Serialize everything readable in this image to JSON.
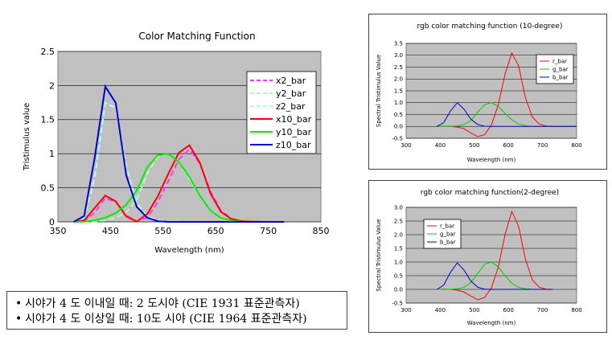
{
  "chart_data": [
    {
      "type": "line",
      "title": "Color Matching Function",
      "xlabel": "Wavelength (nm)",
      "ylabel": "Tristimulus value",
      "xlim": [
        350,
        850
      ],
      "ylim": [
        0,
        2.5
      ],
      "xticks": [
        "350",
        "450",
        "550",
        "650",
        "750",
        "850"
      ],
      "yticks": [
        "0",
        "0.5",
        "1",
        "1.5",
        "2",
        "2.5"
      ],
      "grid": true,
      "legend": "top-right",
      "background": "#c0c0c0",
      "x": [
        380,
        400,
        420,
        440,
        460,
        480,
        500,
        520,
        540,
        560,
        580,
        600,
        620,
        640,
        660,
        680,
        700,
        720,
        740,
        760,
        780
      ],
      "series": [
        {
          "name": "x2_bar",
          "color": "#ff33ff",
          "dash": "dash",
          "values": [
            0.001,
            0.014,
            0.134,
            0.348,
            0.291,
            0.096,
            0.005,
            0.063,
            0.29,
            0.595,
            0.916,
            1.062,
            0.854,
            0.448,
            0.165,
            0.047,
            0.011,
            0.003,
            0.001,
            0.0,
            0.0
          ]
        },
        {
          "name": "y2_bar",
          "color": "#b3ffb3",
          "dash": "dash",
          "values": [
            0.0,
            0.0004,
            0.004,
            0.023,
            0.06,
            0.139,
            0.323,
            0.71,
            0.954,
            0.995,
            0.87,
            0.631,
            0.381,
            0.175,
            0.061,
            0.017,
            0.004,
            0.001,
            0.0,
            0.0,
            0.0
          ]
        },
        {
          "name": "z2_bar",
          "color": "#b3ffff",
          "dash": "dash",
          "values": [
            0.007,
            0.068,
            0.646,
            1.747,
            1.669,
            0.813,
            0.272,
            0.078,
            0.02,
            0.004,
            0.002,
            0.001,
            0.0,
            0.0,
            0.0,
            0.0,
            0.0,
            0.0,
            0.0,
            0.0,
            0.0
          ]
        },
        {
          "name": "x10_bar",
          "color": "#ff0000",
          "dash": "solid",
          "values": [
            0.0,
            0.019,
            0.205,
            0.386,
            0.302,
            0.08,
            0.004,
            0.118,
            0.377,
            0.705,
            1.014,
            1.124,
            0.866,
            0.418,
            0.146,
            0.041,
            0.01,
            0.002,
            0.0,
            0.0,
            0.0
          ]
        },
        {
          "name": "y10_bar",
          "color": "#00ee00",
          "dash": "solid",
          "values": [
            0.0,
            0.002,
            0.021,
            0.062,
            0.128,
            0.254,
            0.461,
            0.803,
            0.98,
            0.997,
            0.878,
            0.66,
            0.382,
            0.166,
            0.058,
            0.016,
            0.004,
            0.001,
            0.0,
            0.0,
            0.0
          ]
        },
        {
          "name": "z10_bar",
          "color": "#0000cc",
          "dash": "solid",
          "values": [
            0.0,
            0.086,
            0.945,
            1.985,
            1.745,
            0.68,
            0.218,
            0.06,
            0.01,
            0.0,
            0.0,
            0.0,
            0.0,
            0.0,
            0.0,
            0.0,
            0.0,
            0.0,
            0.0,
            0.0,
            0.0
          ]
        }
      ]
    },
    {
      "type": "line",
      "title": "rgb color matching function (10-degree)",
      "xlabel": "Wavelength (nm)",
      "ylabel": "Spectral Tristimulus Value",
      "xlim": [
        300,
        800
      ],
      "ylim": [
        -0.5,
        3.5
      ],
      "xticks": [
        "300",
        "400",
        "500",
        "600",
        "700",
        "800"
      ],
      "yticks": [
        "-0.5",
        "0.0",
        "0.5",
        "1.0",
        "1.5",
        "2.0",
        "2.5",
        "3.0",
        "3.5"
      ],
      "grid": true,
      "legend": "top-right",
      "background": "#c0c0c0",
      "x": [
        390,
        410,
        430,
        450,
        470,
        490,
        510,
        530,
        550,
        570,
        590,
        610,
        630,
        650,
        670,
        690,
        710,
        730,
        750,
        770,
        790,
        800
      ],
      "series": [
        {
          "name": "r_bar",
          "color": "#ff0000",
          "values": [
            0.0,
            0.01,
            0.0,
            -0.03,
            -0.1,
            -0.28,
            -0.43,
            -0.35,
            0.05,
            0.9,
            2.2,
            3.1,
            2.55,
            1.2,
            0.4,
            0.1,
            0.02,
            0.0,
            0.0,
            0.0,
            0.0,
            0.0
          ]
        },
        {
          "name": "g_bar",
          "color": "#00cc00",
          "values": [
            0.0,
            0.0,
            0.0,
            0.02,
            0.08,
            0.25,
            0.6,
            0.92,
            1.0,
            0.85,
            0.55,
            0.28,
            0.1,
            0.03,
            0.0,
            0.0,
            0.0,
            0.0,
            0.0,
            0.0,
            0.0,
            0.0
          ]
        },
        {
          "name": "b_bar",
          "color": "#0000cc",
          "values": [
            0.0,
            0.15,
            0.65,
            1.0,
            0.72,
            0.3,
            0.08,
            0.01,
            0.0,
            0.0,
            0.0,
            0.0,
            0.0,
            0.0,
            0.0,
            0.0,
            0.0,
            0.0,
            0.0,
            0.0,
            0.0,
            0.0
          ]
        }
      ]
    },
    {
      "type": "line",
      "title": "rgb color matching function(2-degree)",
      "xlabel": "Wavelength (nm)",
      "ylabel": "Spectral Tristimulus Value",
      "xlim": [
        300,
        800
      ],
      "ylim": [
        -0.5,
        3.0
      ],
      "xticks": [
        "300",
        "400",
        "500",
        "600",
        "700",
        "800"
      ],
      "yticks": [
        "-0.5",
        "0.0",
        "0.5",
        "1.0",
        "1.5",
        "2.0",
        "2.5",
        "3.0"
      ],
      "grid": true,
      "legend": "top-left",
      "background": "#c0c0c0",
      "x": [
        390,
        410,
        430,
        450,
        470,
        490,
        510,
        530,
        550,
        570,
        590,
        610,
        630,
        650,
        670,
        690,
        710,
        730
      ],
      "series": [
        {
          "name": "r_bar",
          "color": "#ff0000",
          "values": [
            0.0,
            0.01,
            0.0,
            -0.03,
            -0.1,
            -0.25,
            -0.38,
            -0.3,
            0.05,
            0.8,
            2.0,
            2.85,
            2.3,
            1.1,
            0.35,
            0.08,
            0.01,
            0.0
          ]
        },
        {
          "name": "g_bar",
          "color": "#00cc00",
          "values": [
            0.0,
            0.0,
            0.0,
            0.02,
            0.08,
            0.25,
            0.58,
            0.92,
            1.0,
            0.83,
            0.5,
            0.22,
            0.07,
            0.02,
            0.0,
            0.0,
            0.0,
            0.0
          ]
        },
        {
          "name": "b_bar",
          "color": "#0000cc",
          "values": [
            0.0,
            0.15,
            0.62,
            0.97,
            0.7,
            0.3,
            0.08,
            0.01,
            0.0,
            0.0,
            0.0,
            0.0,
            0.0,
            0.0,
            0.0,
            0.0,
            0.0,
            0.0
          ]
        }
      ]
    }
  ],
  "notes": [
    "시야가 4 도 이내일 때: 2 도시야 (CIE 1931  표준관측자)",
    "시야가 4 도 이상일 때: 10도 시야 (CIE 1964 표준관측자)"
  ]
}
